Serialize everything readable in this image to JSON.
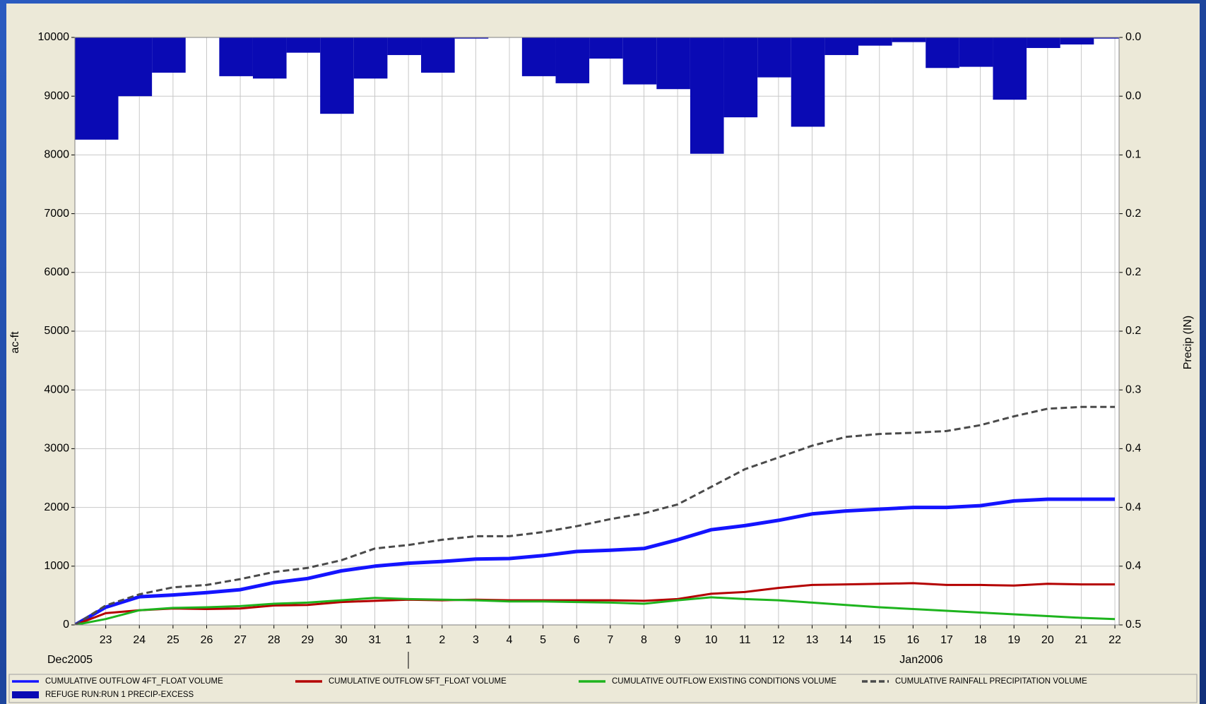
{
  "chart_data": {
    "type": "line",
    "ylabel": "ac-ft",
    "y2label": "Precip (IN)",
    "month_labels": [
      "Dec2005",
      "Jan2006"
    ],
    "xlim": [
      "2005-12-22T02:00",
      "2006-01-22T03:00"
    ],
    "ylim": [
      0,
      10000
    ],
    "yticks": [
      0,
      1000,
      2000,
      3000,
      4000,
      5000,
      6000,
      7000,
      8000,
      9000,
      10000
    ],
    "y2lim": [
      0.5,
      0
    ],
    "y2ticks": [
      {
        "value": 0,
        "label": "0.0"
      },
      {
        "value": 0.05,
        "label": "0.0"
      },
      {
        "value": 0.1,
        "label": "0.1"
      },
      {
        "value": 0.15,
        "label": "0.2"
      },
      {
        "value": 0.2,
        "label": "0.2"
      },
      {
        "value": 0.25,
        "label": "0.2"
      },
      {
        "value": 0.3,
        "label": "0.3"
      },
      {
        "value": 0.35,
        "label": "0.4"
      },
      {
        "value": 0.4,
        "label": "0.4"
      },
      {
        "value": 0.45,
        "label": "0.4"
      },
      {
        "value": 0.5,
        "label": "0.5"
      }
    ],
    "xticks": [
      {
        "value": "2005-12-23",
        "label": "23"
      },
      {
        "value": "2005-12-24",
        "label": "24"
      },
      {
        "value": "2005-12-25",
        "label": "25"
      },
      {
        "value": "2005-12-26",
        "label": "26"
      },
      {
        "value": "2005-12-27",
        "label": "27"
      },
      {
        "value": "2005-12-28",
        "label": "28"
      },
      {
        "value": "2005-12-29",
        "label": "29"
      },
      {
        "value": "2005-12-30",
        "label": "30"
      },
      {
        "value": "2005-12-31",
        "label": "31"
      },
      {
        "value": "2006-01-01",
        "label": "1"
      },
      {
        "value": "2006-01-02",
        "label": "2"
      },
      {
        "value": "2006-01-03",
        "label": "3"
      },
      {
        "value": "2006-01-04",
        "label": "4"
      },
      {
        "value": "2006-01-05",
        "label": "5"
      },
      {
        "value": "2006-01-06",
        "label": "6"
      },
      {
        "value": "2006-01-07",
        "label": "7"
      },
      {
        "value": "2006-01-08",
        "label": "8"
      },
      {
        "value": "2006-01-09",
        "label": "9"
      },
      {
        "value": "2006-01-10",
        "label": "10"
      },
      {
        "value": "2006-01-11",
        "label": "11"
      },
      {
        "value": "2006-01-12",
        "label": "12"
      },
      {
        "value": "2006-01-13",
        "label": "13"
      },
      {
        "value": "2006-01-14",
        "label": "14"
      },
      {
        "value": "2006-01-15",
        "label": "15"
      },
      {
        "value": "2006-01-16",
        "label": "16"
      },
      {
        "value": "2006-01-17",
        "label": "17"
      },
      {
        "value": "2006-01-18",
        "label": "18"
      },
      {
        "value": "2006-01-19",
        "label": "19"
      },
      {
        "value": "2006-01-20",
        "label": "20"
      },
      {
        "value": "2006-01-21",
        "label": "21"
      },
      {
        "value": "2006-01-22",
        "label": "22"
      }
    ],
    "grid": true,
    "x": [
      "2005-12-22T02:00",
      "2005-12-23",
      "2005-12-24",
      "2005-12-25",
      "2005-12-26",
      "2005-12-27",
      "2005-12-28",
      "2005-12-29",
      "2005-12-30",
      "2005-12-31",
      "2006-01-01",
      "2006-01-02",
      "2006-01-03",
      "2006-01-04",
      "2006-01-05",
      "2006-01-06",
      "2006-01-07",
      "2006-01-08",
      "2006-01-09",
      "2006-01-10",
      "2006-01-11",
      "2006-01-12",
      "2006-01-13",
      "2006-01-14",
      "2006-01-15",
      "2006-01-16",
      "2006-01-17",
      "2006-01-18",
      "2006-01-19",
      "2006-01-20",
      "2006-01-21",
      "2006-01-22"
    ],
    "series": [
      {
        "name": "CUMULATIVE OUTFLOW 4FT_FLOAT VOLUME",
        "color": "#1414ff",
        "width": 5,
        "values": [
          0,
          300,
          480,
          510,
          550,
          600,
          720,
          790,
          920,
          1000,
          1050,
          1080,
          1120,
          1130,
          1180,
          1250,
          1270,
          1300,
          1450,
          1620,
          1690,
          1780,
          1890,
          1940,
          1970,
          2000,
          2000,
          2030,
          2110,
          2140,
          2140,
          2140
        ]
      },
      {
        "name": "CUMULATIVE OUTFLOW 5FT_FLOAT VOLUME",
        "color": "#b40000",
        "width": 3,
        "values": [
          0,
          200,
          250,
          280,
          270,
          280,
          330,
          340,
          390,
          410,
          430,
          420,
          430,
          420,
          420,
          420,
          420,
          410,
          440,
          530,
          560,
          630,
          680,
          690,
          700,
          710,
          680,
          680,
          670,
          700,
          690,
          690
        ]
      },
      {
        "name": "CUMULATIVE OUTFLOW EXISTING CONDITIONS VOLUME",
        "color": "#1eb41e",
        "width": 3,
        "values": [
          0,
          100,
          250,
          290,
          300,
          320,
          360,
          380,
          420,
          460,
          440,
          430,
          420,
          400,
          400,
          390,
          380,
          360,
          420,
          470,
          440,
          420,
          380,
          340,
          300,
          270,
          240,
          210,
          180,
          150,
          120,
          100
        ]
      },
      {
        "name": "CUMULATIVE RAINFALL PRECIPITATION VOLUME",
        "color": "#4a4a4a",
        "width": 3,
        "dash": true,
        "values": [
          0,
          330,
          520,
          640,
          680,
          780,
          900,
          970,
          1100,
          1300,
          1360,
          1450,
          1510,
          1510,
          1580,
          1680,
          1800,
          1900,
          2050,
          2350,
          2650,
          2850,
          3050,
          3200,
          3250,
          3270,
          3300,
          3400,
          3550,
          3680,
          3710,
          3710
        ]
      },
      {
        "name": "REFUGE RUN:RUN 1 PRECIP-EXCESS",
        "color": "#0a0ab4",
        "type": "bar",
        "axis": "y2",
        "x": [
          "2005-12-22T02:00",
          "2005-12-23T09:00",
          "2005-12-24T09:00",
          "2005-12-25T09:00",
          "2005-12-26T09:00",
          "2005-12-27T09:00",
          "2005-12-28T09:00",
          "2005-12-29T09:00",
          "2005-12-30T09:00",
          "2005-12-31T09:00",
          "2006-01-01T09:00",
          "2006-01-02T09:00",
          "2006-01-03T09:00",
          "2006-01-04T09:00",
          "2006-01-05T09:00",
          "2006-01-06T09:00",
          "2006-01-07T09:00",
          "2006-01-08T09:00",
          "2006-01-09T09:00",
          "2006-01-10T09:00",
          "2006-01-11T09:00",
          "2006-01-12T09:00",
          "2006-01-13T09:00",
          "2006-01-14T09:00",
          "2006-01-15T09:00",
          "2006-01-16T09:00",
          "2006-01-17T09:00",
          "2006-01-18T09:00",
          "2006-01-19T09:00",
          "2006-01-20T09:00",
          "2006-01-21T09:00"
        ],
        "values": [
          0.087,
          0.05,
          0.03,
          0,
          0.033,
          0.035,
          0.013,
          0.065,
          0.035,
          0.015,
          0.03,
          0.001,
          0,
          0.033,
          0.039,
          0.018,
          0.04,
          0.044,
          0.099,
          0.068,
          0.034,
          0.076,
          0.015,
          0.007,
          0.004,
          0.026,
          0.025,
          0.053,
          0.009,
          0.006,
          0.001
        ]
      }
    ]
  }
}
